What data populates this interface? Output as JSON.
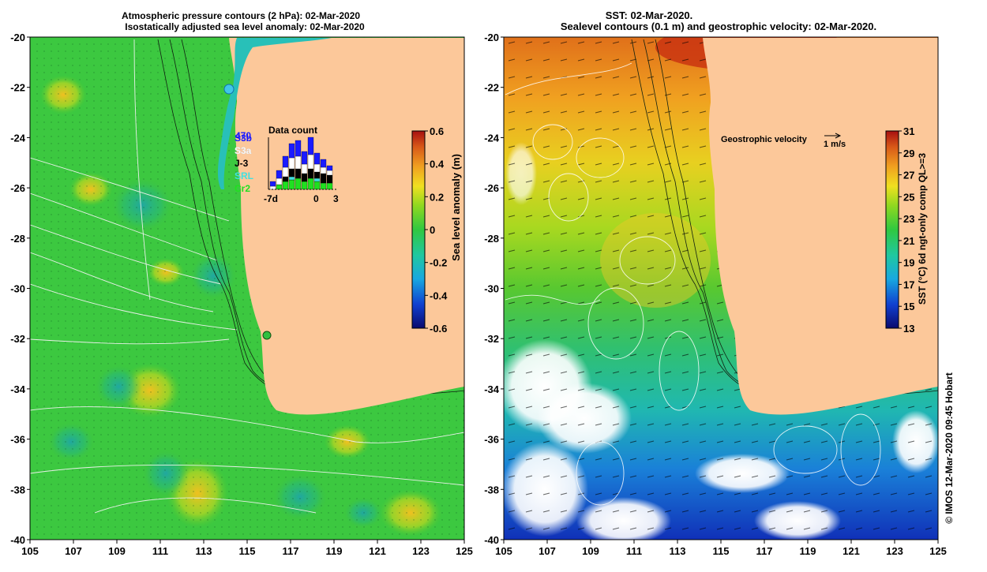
{
  "left_panel": {
    "title_line1": "Atmospheric pressure contours (2 hPa): 02-Mar-2020",
    "title_line2": "Isostatically adjusted sea level anomaly: 02-Mar-2020",
    "colorbar": {
      "label": "Sea level anomaly (m)",
      "ticks": [
        "0.6",
        "0.4",
        "0.2",
        "0",
        "-0.2",
        "-0.4",
        "-0.6"
      ],
      "colors": [
        "#0a0a6e",
        "#1040d0",
        "#18a8e0",
        "#20c8a0",
        "#30c840",
        "#8ed820",
        "#f0e020",
        "#f0a020",
        "#d85818",
        "#a81010"
      ]
    },
    "data_count": {
      "title": "Data count",
      "max_label": "470",
      "satellites": [
        {
          "label": "S3b",
          "color": "#1a1aff"
        },
        {
          "label": "S3a",
          "color": "#ffffff"
        },
        {
          "label": "J-3",
          "color": "#000000"
        },
        {
          "label": "SRL",
          "color": "#40e0e0"
        },
        {
          "label": "Cr2",
          "color": "#20e020"
        }
      ],
      "x_labels": [
        "-7d",
        "0",
        "3"
      ]
    },
    "coast_points": [
      {
        "name": "station-exmouth",
        "color": "#40c8e8"
      },
      {
        "name": "station-perth",
        "color": "#30c040"
      }
    ]
  },
  "right_panel": {
    "title_line1": "SST: 02-Mar-2020.",
    "title_line2": "Sealevel contours (0.1 m) and geostrophic velocity: 02-Mar-2020.",
    "velocity_label": "Geostrophic velocity",
    "velocity_scale": "1 m/s",
    "colorbar": {
      "label": "SST (°C) 6d ngt-only comp QL>=3",
      "ticks": [
        "31",
        "29",
        "27",
        "25",
        "23",
        "21",
        "19",
        "17",
        "15",
        "13"
      ],
      "colors": [
        "#0a0a6e",
        "#1040d0",
        "#18a8e0",
        "#20c8a0",
        "#30c840",
        "#8ed820",
        "#f0e020",
        "#f0a020",
        "#d85818",
        "#a81010"
      ]
    }
  },
  "axes": {
    "x_ticks": [
      "105",
      "107",
      "109",
      "111",
      "113",
      "115",
      "117",
      "119",
      "121",
      "123",
      "125"
    ],
    "y_ticks": [
      "-20",
      "-22",
      "-24",
      "-26",
      "-28",
      "-30",
      "-32",
      "-34",
      "-36",
      "-38",
      "-40"
    ]
  },
  "credit": "© IMOS 12-Mar-2020 09:45 Hobart",
  "land_color": "#fcc89a"
}
